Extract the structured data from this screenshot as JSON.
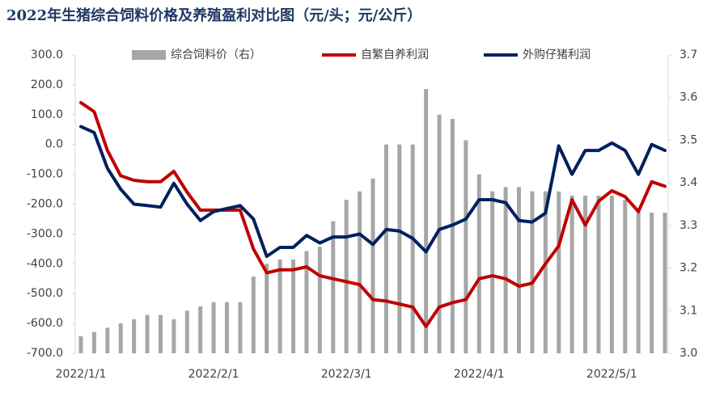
{
  "chart_data": {
    "type": "combo",
    "title": "2022年生猪综合饲料价格及养殖盈利对比图（元/头；元/公斤）",
    "categories": [
      "2022/1/1",
      null,
      null,
      null,
      null,
      null,
      null,
      null,
      null,
      null,
      "2022/2/1",
      null,
      null,
      null,
      null,
      null,
      null,
      null,
      null,
      null,
      "2022/3/1",
      null,
      null,
      null,
      null,
      null,
      null,
      null,
      null,
      null,
      "2022/4/1",
      null,
      null,
      null,
      null,
      null,
      null,
      null,
      null,
      null,
      "2022/5/1",
      null,
      null,
      null,
      null
    ],
    "series": [
      {
        "name": "综合饲料价（右）",
        "type": "bar",
        "axis": "y2",
        "color": "#a6a6a6",
        "values": [
          3.04,
          3.05,
          3.06,
          3.07,
          3.08,
          3.09,
          3.09,
          3.08,
          3.1,
          3.11,
          3.12,
          3.12,
          3.12,
          3.18,
          3.21,
          3.22,
          3.22,
          3.24,
          3.25,
          3.31,
          3.36,
          3.38,
          3.41,
          3.49,
          3.49,
          3.49,
          3.62,
          3.56,
          3.55,
          3.5,
          3.42,
          3.38,
          3.39,
          3.39,
          3.38,
          3.38,
          3.38,
          3.37,
          3.37,
          3.37,
          3.37,
          3.36,
          3.34,
          3.33,
          3.33
        ]
      },
      {
        "name": "自繁自养利润",
        "type": "line",
        "color": "#c00000",
        "values": [
          140,
          110,
          -20,
          -105,
          -120,
          -125,
          -125,
          -90,
          -160,
          -220,
          -220,
          -220,
          -220,
          -350,
          -430,
          -420,
          -420,
          -410,
          -440,
          -450,
          -460,
          -470,
          -520,
          -525,
          -535,
          -545,
          -610,
          -545,
          -530,
          -520,
          -450,
          -440,
          -450,
          -475,
          -465,
          -400,
          -340,
          -185,
          -270,
          -190,
          -155,
          -175,
          -225,
          -125,
          -140
        ]
      },
      {
        "name": "外购仔猪利润",
        "type": "line",
        "color": "#002060",
        "values": [
          60,
          40,
          -80,
          -150,
          -200,
          -205,
          -210,
          -130,
          -200,
          -255,
          -225,
          -215,
          -205,
          -250,
          -375,
          -345,
          -345,
          -305,
          -330,
          -310,
          -310,
          -300,
          -335,
          -285,
          -290,
          -315,
          -360,
          -285,
          -270,
          -250,
          -185,
          -185,
          -195,
          -255,
          -260,
          -230,
          -5,
          -100,
          -20,
          -20,
          5,
          -20,
          -100,
          0,
          -20
        ]
      }
    ],
    "ylim": [
      -700,
      300
    ],
    "yticks": [
      {
        "value": -700,
        "label": "-700.0"
      },
      {
        "value": -600,
        "label": "-600.0"
      },
      {
        "value": -500,
        "label": "-500.0"
      },
      {
        "value": -400,
        "label": "-400.0"
      },
      {
        "value": -300,
        "label": "-300.0"
      },
      {
        "value": -200,
        "label": "-200.0"
      },
      {
        "value": -100,
        "label": "-100.0"
      },
      {
        "value": 0,
        "label": "0.0"
      },
      {
        "value": 100,
        "label": "100.0"
      },
      {
        "value": 200,
        "label": "200.0"
      },
      {
        "value": 300,
        "label": "300.0"
      }
    ],
    "y2lim": [
      3.0,
      3.7
    ],
    "y2ticks": [
      {
        "value": 3,
        "label": "3.0"
      },
      3.1,
      3.2,
      3.3,
      3.4,
      3.5,
      3.6,
      3.7
    ],
    "legend": "top",
    "grid": false
  }
}
